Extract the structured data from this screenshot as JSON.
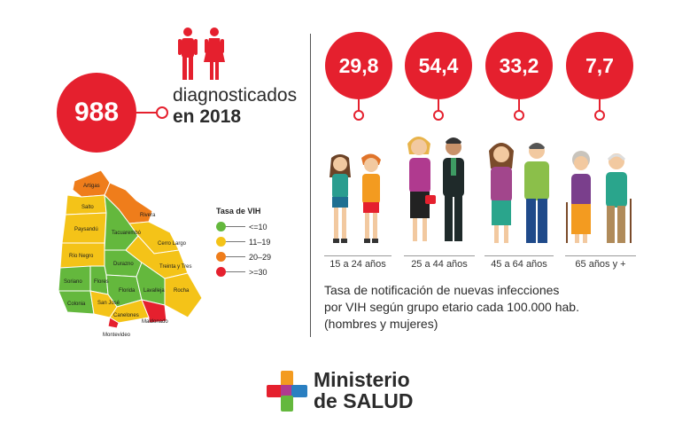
{
  "total": {
    "count": "988",
    "label_line1": "diagnosticados",
    "label_line2": "en 2018"
  },
  "map": {
    "departments": [
      "Artigas",
      "Salto",
      "Paysandú",
      "Río Negro",
      "Soriano",
      "Colonia",
      "Tacuarembó",
      "Rivera",
      "Cerro Largo",
      "Treinta y Tres",
      "Durazno",
      "Flores",
      "Florida",
      "Lavalleja",
      "Rocha",
      "San José",
      "Canelones",
      "Maldonado",
      "Montevideo"
    ],
    "legend_title": "Tasa de VIH",
    "legend": [
      {
        "label": "<=10",
        "color": "#64b83d"
      },
      {
        "label": "11–19",
        "color": "#f4c318"
      },
      {
        "label": "20–29",
        "color": "#ef7d1b"
      },
      {
        "label": ">=30",
        "color": "#e5202e"
      }
    ]
  },
  "age_groups": [
    {
      "rate": "29,8",
      "label": "15 a 24 años"
    },
    {
      "rate": "54,4",
      "label": "25 a 44 años"
    },
    {
      "rate": "33,2",
      "label": "45 a 64 años"
    },
    {
      "rate": "7,7",
      "label": "65 años y +"
    }
  ],
  "caption": {
    "line1": "Tasa de notificación de nuevas infecciones",
    "line2": "por VIH según grupo etario cada 100.000 hab.",
    "line3": "(hombres y mujeres)"
  },
  "logo": {
    "line1": "Ministerio",
    "line2": "de SALUD"
  },
  "colors": {
    "red": "#e5202e",
    "green": "#64b83d",
    "yellow": "#f4c318",
    "orange": "#ef7d1b"
  }
}
